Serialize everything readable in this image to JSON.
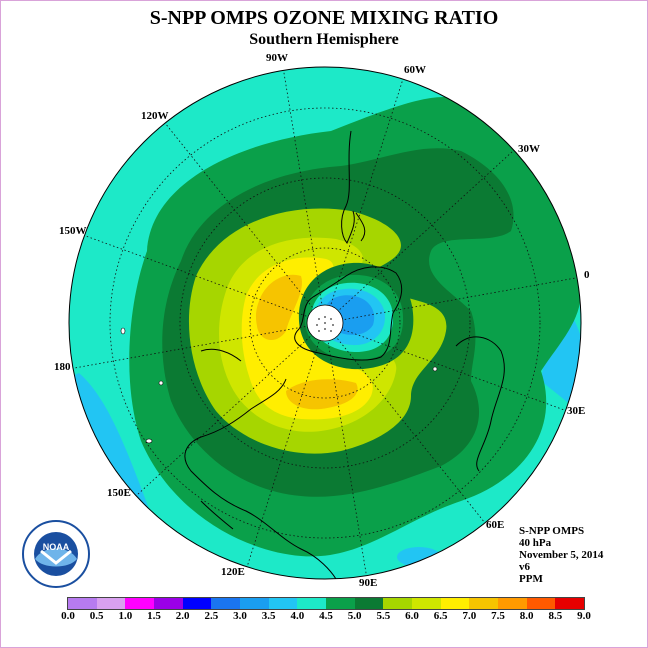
{
  "title": "S-NPP OMPS OZONE MIXING RATIO",
  "subtitle": "Southern Hemisphere",
  "lon_labels": {
    "l90w": "90W",
    "l60w": "60W",
    "l120w": "120W",
    "l30w": "30W",
    "l150w": "150W",
    "l0": "0",
    "l180": "180",
    "l30e": "30E",
    "l150e": "150E",
    "l60e": "60E",
    "l120e": "120E",
    "l90e": "90E"
  },
  "info": {
    "instrument": "S-NPP OMPS",
    "level": "40 hPa",
    "date": "November 5, 2014",
    "version": "v6",
    "units": "PPM"
  },
  "colorbar": {
    "ticks": [
      "0.0",
      "0.5",
      "1.0",
      "1.5",
      "2.0",
      "2.5",
      "3.0",
      "3.5",
      "4.0",
      "4.5",
      "5.0",
      "5.5",
      "6.0",
      "6.5",
      "7.0",
      "7.5",
      "8.0",
      "8.5",
      "9.0"
    ],
    "colors": [
      "#b77bf0",
      "#d9a0f0",
      "#ff00ff",
      "#9b00e8",
      "#0000ff",
      "#1a75f0",
      "#1a9ef0",
      "#22c5f3",
      "#1de9c8",
      "#0aa04a",
      "#0b7a33",
      "#a6d600",
      "#cfe600",
      "#ffee00",
      "#f6c400",
      "#ff9a00",
      "#ff5a00",
      "#e60000",
      "#8b5a3c"
    ]
  }
}
